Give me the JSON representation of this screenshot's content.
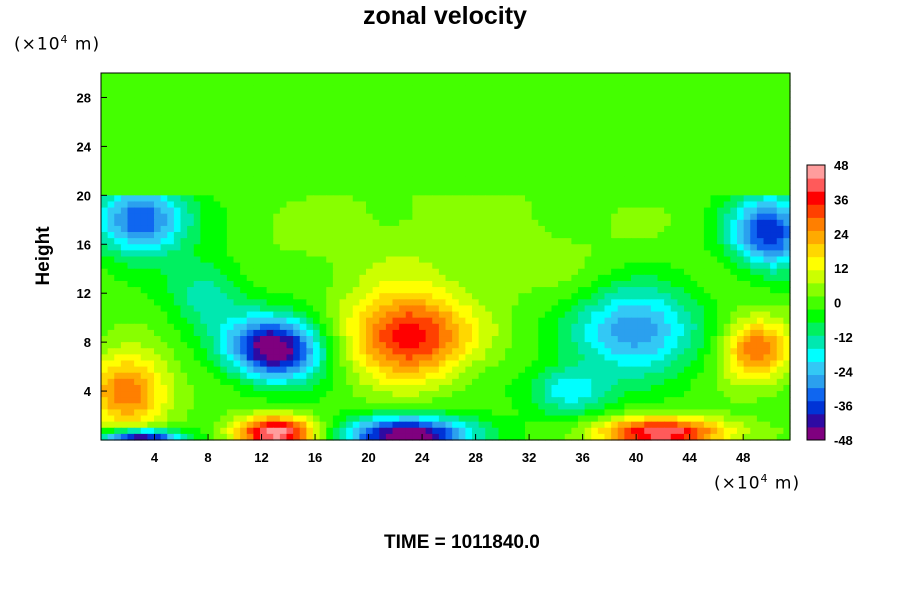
{
  "chart_data": {
    "type": "heatmap",
    "title": "zonal velocity",
    "ylabel": "Height",
    "xlabel": "",
    "x_unit_prefix": "(×10",
    "x_unit_exp": "4",
    "x_unit_suffix": " m)",
    "y_unit_prefix": "(×10",
    "y_unit_exp": "4",
    "y_unit_suffix": " m)",
    "xlim": [
      0,
      51.5
    ],
    "ylim": [
      0,
      30
    ],
    "x_ticks": [
      4,
      8,
      12,
      16,
      20,
      24,
      28,
      32,
      36,
      40,
      44,
      48
    ],
    "y_ticks": [
      4,
      8,
      12,
      16,
      20,
      24,
      28
    ],
    "colorbar": {
      "range": [
        -48,
        48
      ],
      "ticks": [
        48,
        36,
        24,
        12,
        0,
        -12,
        -24,
        -36,
        -48
      ],
      "colors": [
        "#7f007f",
        "#2e0aa3",
        "#0033d6",
        "#0f66f0",
        "#2ba0ee",
        "#33c8f5",
        "#00ffff",
        "#00e8b0",
        "#00f060",
        "#00ff00",
        "#44ff00",
        "#88ff00",
        "#ccff00",
        "#ffff00",
        "#ffd700",
        "#ffaa00",
        "#ff7f00",
        "#ff4000",
        "#ff0000",
        "#ff5a5a",
        "#ff9d9d"
      ]
    },
    "features": [
      {
        "x": 25.5,
        "y": 16,
        "value": 5,
        "sx": 14,
        "sy": 5
      },
      {
        "x": 23,
        "y": 8.5,
        "value": 38,
        "sx": 4.5,
        "sy": 3.5
      },
      {
        "x": 13,
        "y": 7.5,
        "value": -50,
        "sx": 3.5,
        "sy": 2.6
      },
      {
        "x": 3,
        "y": 18,
        "value": -36,
        "sx": 3.5,
        "sy": 2.8
      },
      {
        "x": 50,
        "y": 17,
        "value": -38,
        "sx": 3,
        "sy": 3
      },
      {
        "x": 40,
        "y": 9,
        "value": -30,
        "sx": 4.5,
        "sy": 3.5
      },
      {
        "x": 49,
        "y": 7.5,
        "value": 30,
        "sx": 2.5,
        "sy": 2.5
      },
      {
        "x": 2,
        "y": 4,
        "value": 30,
        "sx": 3,
        "sy": 3
      },
      {
        "x": 13,
        "y": 0.6,
        "value": 48,
        "sx": 3,
        "sy": 1.3
      },
      {
        "x": 23,
        "y": 0.4,
        "value": -48,
        "sx": 5,
        "sy": 1.5
      },
      {
        "x": 42,
        "y": 0.6,
        "value": 42,
        "sx": 5,
        "sy": 1.2
      },
      {
        "x": 3,
        "y": 0.2,
        "value": -48,
        "sx": 3,
        "sy": 0.7
      },
      {
        "x": 8,
        "y": 12,
        "value": -15,
        "sx": 3,
        "sy": 3
      },
      {
        "x": 35,
        "y": 4,
        "value": -20,
        "sx": 3,
        "sy": 2
      }
    ],
    "top_layer": {
      "from_y": 20,
      "value": 0
    }
  },
  "footer": {
    "time_label": "TIME = 1011840.0"
  }
}
